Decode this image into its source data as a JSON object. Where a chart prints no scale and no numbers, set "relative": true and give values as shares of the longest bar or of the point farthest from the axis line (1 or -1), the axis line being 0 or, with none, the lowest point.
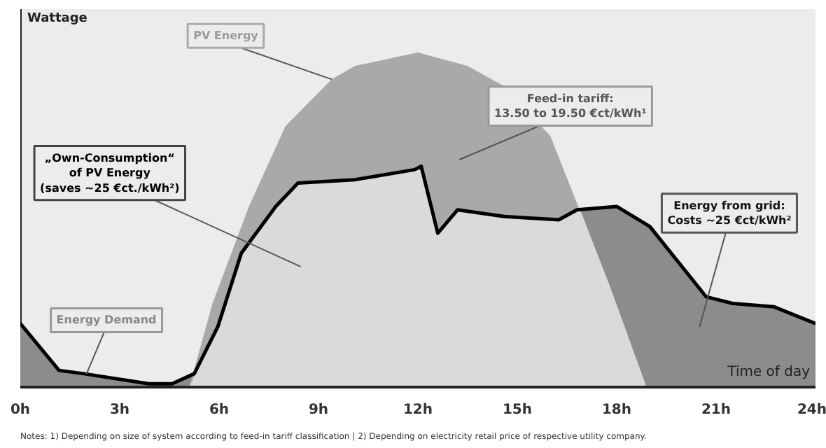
{
  "chart_data": {
    "type": "area",
    "relative": true,
    "xlabel": "Time of day",
    "ylabel": "Wattage",
    "xlim": [
      0,
      24
    ],
    "xticks": [
      {
        "value": 0,
        "label": "0h"
      },
      {
        "value": 3,
        "label": "3h"
      },
      {
        "value": 6,
        "label": "6h"
      },
      {
        "value": 9,
        "label": "9h"
      },
      {
        "value": 12,
        "label": "12h"
      },
      {
        "value": 15,
        "label": "15h"
      },
      {
        "value": 18,
        "label": "18h"
      },
      {
        "value": 21,
        "label": "21h"
      },
      {
        "value": 24,
        "label": "24h"
      }
    ],
    "grid": false,
    "series": [
      {
        "color": "#a9a9a9",
        "x": [
          5.1,
          5.8,
          6.9,
          8,
          9.4,
          10.1,
          12,
          13.5,
          14.6,
          16,
          16.8,
          17.8,
          18.9
        ],
        "values": [
          0,
          0.25,
          0.54,
          0.78,
          0.92,
          0.96,
          1,
          0.96,
          0.9,
          0.75,
          0.55,
          0.3,
          0
        ]
      },
      {
        "color": "#8c8c8c",
        "x": [
          0,
          1.17,
          1.92,
          3.88,
          4.58,
          5.25,
          10,
          16.8,
          18,
          19,
          20.7,
          21.5,
          22.75,
          24
        ],
        "values": [
          0.19,
          0.05,
          0.04,
          0.01,
          0.01,
          0.04,
          null,
          0.53,
          0.54,
          0.48,
          0.27,
          0.25,
          0.24,
          0.19
        ]
      },
      {
        "color": "#dadada",
        "x": [
          5.1,
          5.8,
          5.96,
          6.67,
          7.71,
          8.38,
          10.1,
          11.9,
          12.1,
          12.6,
          13.2,
          14.6,
          16.25,
          16.9,
          17.8,
          18.9
        ],
        "values": [
          0,
          0.15,
          0.18,
          0.4,
          0.54,
          0.61,
          0.62,
          0.65,
          0.66,
          0.46,
          0.53,
          0.51,
          0.5,
          0.53,
          0.3,
          0
        ]
      },
      {
        "type": "line",
        "color": "#000000",
        "x": [
          0,
          1.17,
          1.92,
          3.88,
          4.58,
          5.25,
          5.96,
          6.67,
          7.71,
          8.38,
          10.1,
          11.9,
          12.1,
          12.6,
          13.2,
          14.6,
          16.25,
          16.8,
          18,
          19,
          20.7,
          21.5,
          22.75,
          24
        ],
        "values": [
          0.19,
          0.05,
          0.04,
          0.01,
          0.01,
          0.04,
          0.18,
          0.4,
          0.54,
          0.61,
          0.62,
          0.65,
          0.66,
          0.46,
          0.53,
          0.51,
          0.5,
          0.53,
          0.54,
          0.48,
          0.27,
          0.25,
          0.24,
          0.19
        ]
      }
    ],
    "annotations": [
      "PV Energy",
      "Feed-in tariff:\n13.50 to 19.50 €ct/kWh¹",
      "„Own-Consumption“\nof PV Energy\n(saves ~25 €ct./kWh²)",
      "Energy from grid:\nCosts ~25 €ct/kWh²",
      "Energy Demand",
      "Notes: 1) Depending on size of system according to feed-in tariff classification | 2) Depending on electricity retail price of respective utility company."
    ]
  }
}
